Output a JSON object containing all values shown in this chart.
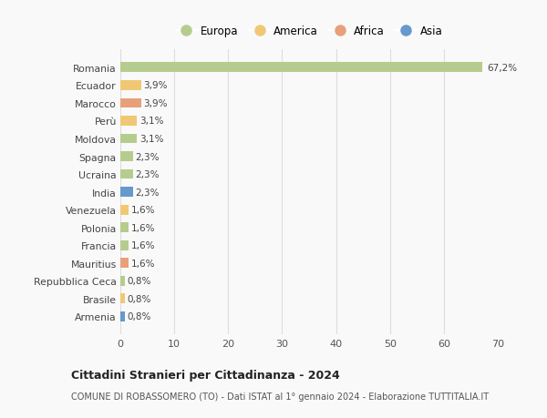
{
  "countries": [
    "Romania",
    "Ecuador",
    "Marocco",
    "Perù",
    "Moldova",
    "Spagna",
    "Ucraina",
    "India",
    "Venezuela",
    "Polonia",
    "Francia",
    "Mauritius",
    "Repubblica Ceca",
    "Brasile",
    "Armenia"
  ],
  "values": [
    67.2,
    3.9,
    3.9,
    3.1,
    3.1,
    2.3,
    2.3,
    2.3,
    1.6,
    1.6,
    1.6,
    1.6,
    0.8,
    0.8,
    0.8
  ],
  "labels": [
    "67,2%",
    "3,9%",
    "3,9%",
    "3,1%",
    "3,1%",
    "2,3%",
    "2,3%",
    "2,3%",
    "1,6%",
    "1,6%",
    "1,6%",
    "1,6%",
    "0,8%",
    "0,8%",
    "0,8%"
  ],
  "continents": [
    "Europa",
    "America",
    "Africa",
    "America",
    "Europa",
    "Europa",
    "Europa",
    "Asia",
    "America",
    "Europa",
    "Europa",
    "Africa",
    "Europa",
    "America",
    "Asia"
  ],
  "continent_colors": {
    "Europa": "#b5cc8e",
    "America": "#f0c875",
    "Africa": "#e8a07a",
    "Asia": "#6699cc"
  },
  "legend_order": [
    "Europa",
    "America",
    "Africa",
    "Asia"
  ],
  "xlim": [
    0,
    70
  ],
  "xticks": [
    0,
    10,
    20,
    30,
    40,
    50,
    60,
    70
  ],
  "title": "Cittadini Stranieri per Cittadinanza - 2024",
  "subtitle": "COMUNE DI ROBASSOMERO (TO) - Dati ISTAT al 1° gennaio 2024 - Elaborazione TUTTITALIA.IT",
  "background_color": "#f9f9f9",
  "grid_color": "#dddddd",
  "bar_height": 0.55
}
